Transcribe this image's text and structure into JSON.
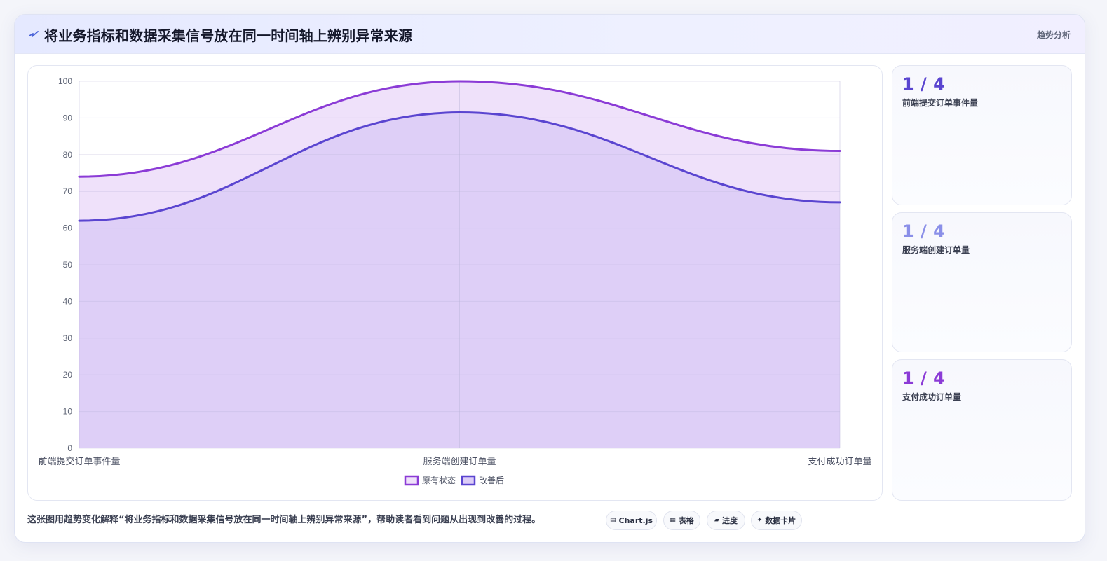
{
  "header": {
    "title": "将业务指标和数据采集信号放在同一时间轴上辨别异常来源",
    "tag": "趋势分析",
    "icon": "bolt-icon"
  },
  "chart_data": {
    "type": "area",
    "categories": [
      "前端提交订单事件量",
      "服务端创建订单量",
      "支付成功订单量"
    ],
    "series": [
      {
        "name": "原有状态",
        "values": [
          74,
          100,
          81
        ],
        "color": "#8b3bd6",
        "fill": "#efe1fa"
      },
      {
        "name": "改善后",
        "values": [
          62,
          91.5,
          67
        ],
        "color": "#5a45d0",
        "fill": "#dccdf7"
      }
    ],
    "ylim": [
      0,
      100
    ],
    "yticks": [
      "0",
      "10",
      "20",
      "30",
      "40",
      "50",
      "60",
      "70",
      "80",
      "90",
      "100"
    ],
    "grid": true,
    "legend": "bottom"
  },
  "side_cards": [
    {
      "value": "1 / 4",
      "label": "前端提交订单事件量",
      "color": "#5a45d0"
    },
    {
      "value": "1 / 4",
      "label": "服务端创建订单量",
      "color": "#8a8fe8"
    },
    {
      "value": "1 / 4",
      "label": "支付成功订单量",
      "color": "#8b3bd6"
    }
  ],
  "footer": {
    "note": "这张图用趋势变化解释“将业务指标和数据采集信号放在同一时间轴上辨别异常来源”，帮助读者看到问题从出现到改善的过程。",
    "chips": [
      {
        "glyph": "▤",
        "label": "Chart.js",
        "icon": "chart-icon"
      },
      {
        "glyph": "▦",
        "label": "表格",
        "icon": "table-icon"
      },
      {
        "glyph": "▰",
        "label": "进度",
        "icon": "progress-icon"
      },
      {
        "glyph": "✦",
        "label": "数据卡片",
        "icon": "card-icon"
      }
    ]
  }
}
